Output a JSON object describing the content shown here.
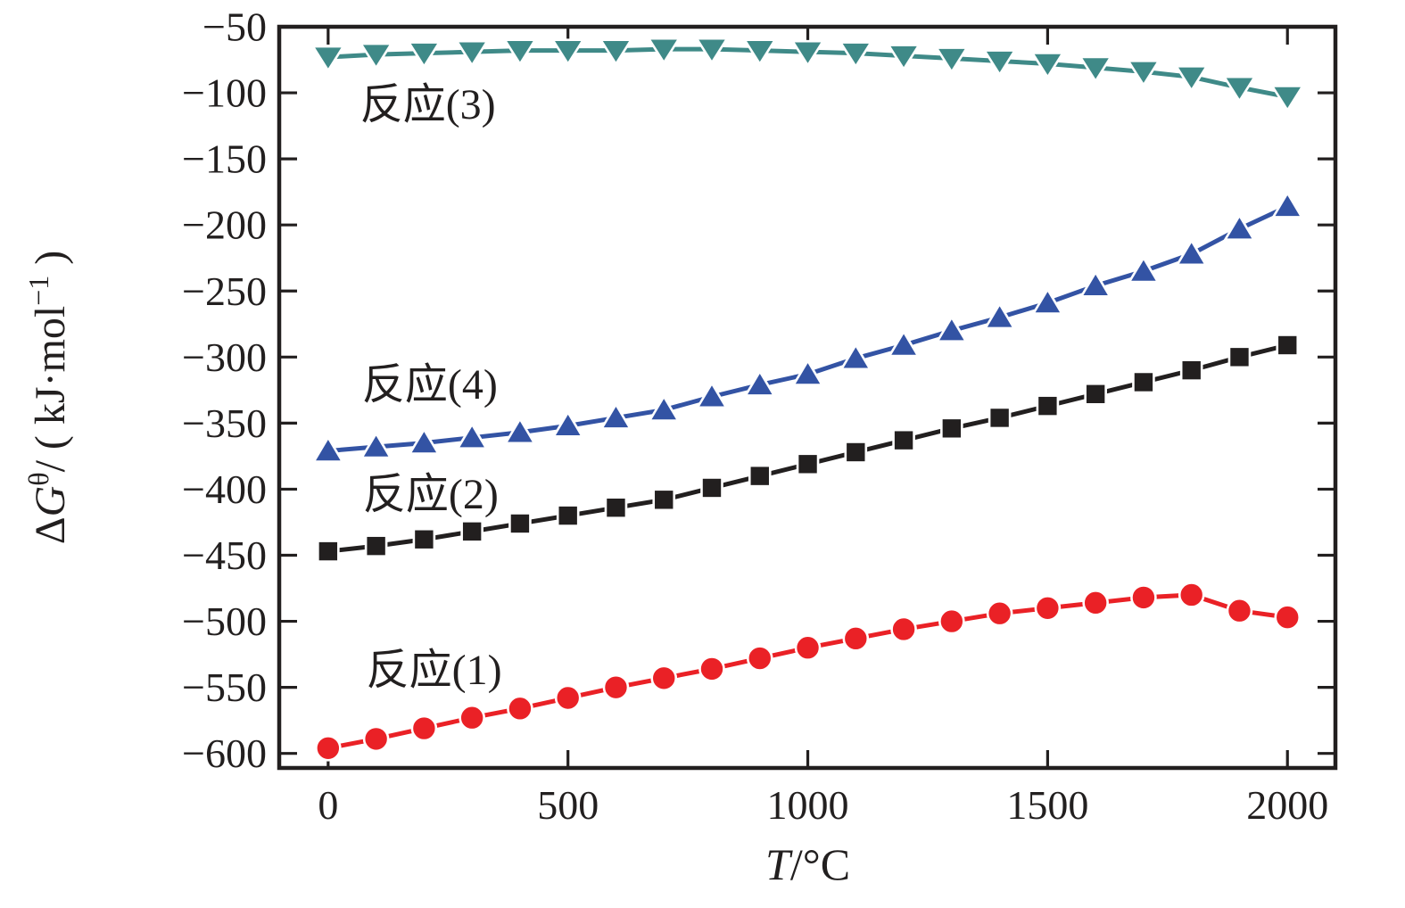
{
  "chart_data": {
    "type": "line",
    "title": "",
    "xlabel": {
      "italic": "T",
      "rest": "/°C"
    },
    "ylabel": {
      "prefix": "Δ",
      "symbol": "G",
      "sup1": "θ",
      "mid": "/ ( kJ·mol",
      "sup2": "−1",
      "suffix": " )"
    },
    "xlim": [
      -102,
      2100
    ],
    "ylim": [
      -611,
      -50
    ],
    "grid": false,
    "legend_position": "inline-annotations",
    "xticks": {
      "values": [
        0,
        500,
        1000,
        1500,
        2000
      ],
      "labels": [
        "0",
        "500",
        "1000",
        "1500",
        "2000"
      ]
    },
    "yticks": {
      "values": [
        -50,
        -100,
        -150,
        -200,
        -250,
        -300,
        -350,
        -400,
        -450,
        -500,
        -550,
        -600
      ],
      "labels": [
        "−50",
        "−100",
        "−150",
        "−200",
        "−250",
        "−300",
        "−350",
        "−400",
        "−450",
        "−500",
        "−550",
        "−600"
      ]
    },
    "x": [
      0,
      100,
      200,
      300,
      400,
      500,
      600,
      700,
      800,
      900,
      1000,
      1100,
      1200,
      1300,
      1400,
      1500,
      1600,
      1700,
      1800,
      1900,
      2000
    ],
    "series": [
      {
        "name": "反应(3)",
        "marker": "triangle-down",
        "color": "#3f8a88",
        "values": [
          -73,
          -71,
          -70,
          -69,
          -68,
          -68,
          -68,
          -67,
          -67,
          -68,
          -69,
          -70,
          -72,
          -74,
          -76,
          -78,
          -81,
          -84,
          -88,
          -96,
          -103
        ]
      },
      {
        "name": "反应(4)",
        "marker": "triangle-up",
        "color": "#3353a4",
        "values": [
          -371,
          -368,
          -365,
          -361,
          -357,
          -352,
          -346,
          -340,
          -330,
          -321,
          -313,
          -301,
          -291,
          -280,
          -270,
          -259,
          -246,
          -235,
          -222,
          -203,
          -186
        ]
      },
      {
        "name": "反应(2)",
        "marker": "square",
        "color": "#221f1f",
        "values": [
          -447,
          -443,
          -438,
          -432,
          -426,
          -420,
          -414,
          -408,
          -399,
          -390,
          -381,
          -372,
          -363,
          -354,
          -346,
          -337,
          -328,
          -319,
          -310,
          -300,
          -291
        ]
      },
      {
        "name": "反应(1)",
        "marker": "circle",
        "color": "#ea2126",
        "values": [
          -596,
          -589,
          -581,
          -573,
          -566,
          -558,
          -550,
          -543,
          -536,
          -528,
          -520,
          -513,
          -506,
          -500,
          -494,
          -490,
          -486,
          -482,
          -480,
          -492,
          -497
        ]
      }
    ],
    "annotations": [
      {
        "text": "反应(3)",
        "t": 208,
        "g": -109
      },
      {
        "text": "反应(4)",
        "t": 212,
        "g": -321
      },
      {
        "text": "反应(2)",
        "t": 214,
        "g": -404
      },
      {
        "text": "反应(1)",
        "t": 221,
        "g": -537
      }
    ]
  }
}
